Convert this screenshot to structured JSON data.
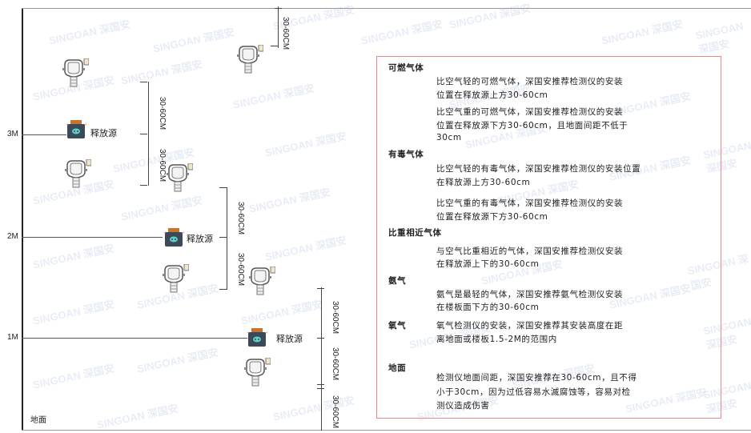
{
  "diagram": {
    "levels": [
      "3M",
      "2M",
      "1M"
    ],
    "floor_label": "地面",
    "source_label": "释放源",
    "dimension_label": "30-60CM",
    "watermark": "SINGOAN 深国安"
  },
  "panel": {
    "sections": [
      {
        "title": "可燃气体",
        "paragraphs": [
          [
            "比空气轻的可燃气体，深国安推荐检测仪的安装",
            "位置在释放源上方30-60cm"
          ],
          [
            "比空气重的可燃气体，深国安推荐检测仪的安装",
            "位置在释放源下方30-60cm，且地面间距不低于",
            "30cm"
          ]
        ]
      },
      {
        "title": "有毒气体",
        "paragraphs": [
          [
            "比空气轻的有毒气体，深国安推荐检测仪的安装位置",
            "在释放源上方30-60cm"
          ],
          [
            "比空气重的有毒气体，深国安推荐检测仪的安装",
            "位置在释放源下方30-60cm"
          ]
        ]
      },
      {
        "title": "比重相近气体",
        "paragraphs": [
          [
            "与空气比重相近的气体，深国安推荐检测仪安装",
            "在释放源上下的30-60cm"
          ]
        ]
      },
      {
        "title": "氨气",
        "paragraphs": [
          [
            "氨气是最轻的气体，深国安推荐氨气检测仪安装",
            "在楼板面下方的30-60cm"
          ]
        ]
      },
      {
        "title": "氧气",
        "paragraphs": [
          [
            "氧气检测仪的安装，深国安推荐其安装高度在距",
            "离地面或楼板1.5-2M的范围内"
          ]
        ]
      },
      {
        "title": "地面",
        "paragraphs": [
          [
            "检测仪地面间距，深国安推荐在30-60cm，且不得",
            "小于30cm，因为过低容易水滅腐蚀等，容易对检",
            "测仪造成伤害"
          ]
        ]
      }
    ]
  },
  "colors": {
    "box_border": "#e88a8a",
    "source_body": "#3b4a58",
    "source_top": "#c9742c",
    "source_face": "#5fd0c8"
  }
}
